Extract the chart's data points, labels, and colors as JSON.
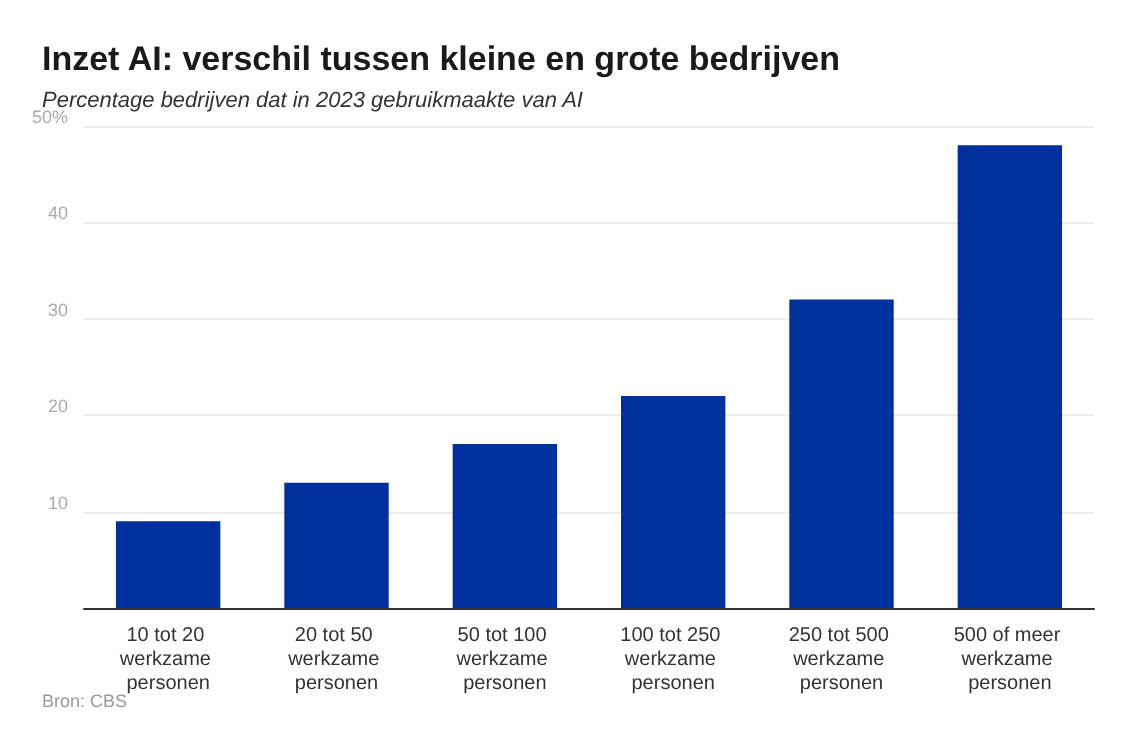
{
  "chart_data": {
    "type": "bar",
    "title": "Inzet AI: verschil tussen kleine en grote bedrijven",
    "subtitle": "Percentage bedrijven dat in 2023 gebruikmaakte van AI",
    "categories": [
      "10 tot 20 werkzame personen",
      "20 tot 50 werkzame personen",
      "50 tot 100 werkzame personen",
      "100 tot 250 werkzame personen",
      "250 tot 500 werkzame personen",
      "500 of meer werkzame personen"
    ],
    "values": [
      9,
      13,
      17,
      22,
      32,
      48
    ],
    "color": "#00309b",
    "ylim": [
      0,
      50
    ],
    "yticks": [
      10,
      20,
      30,
      40,
      {
        "value": 50,
        "label": "50%"
      }
    ],
    "grid": "y",
    "annotations": [
      "Bron: CBS"
    ]
  }
}
